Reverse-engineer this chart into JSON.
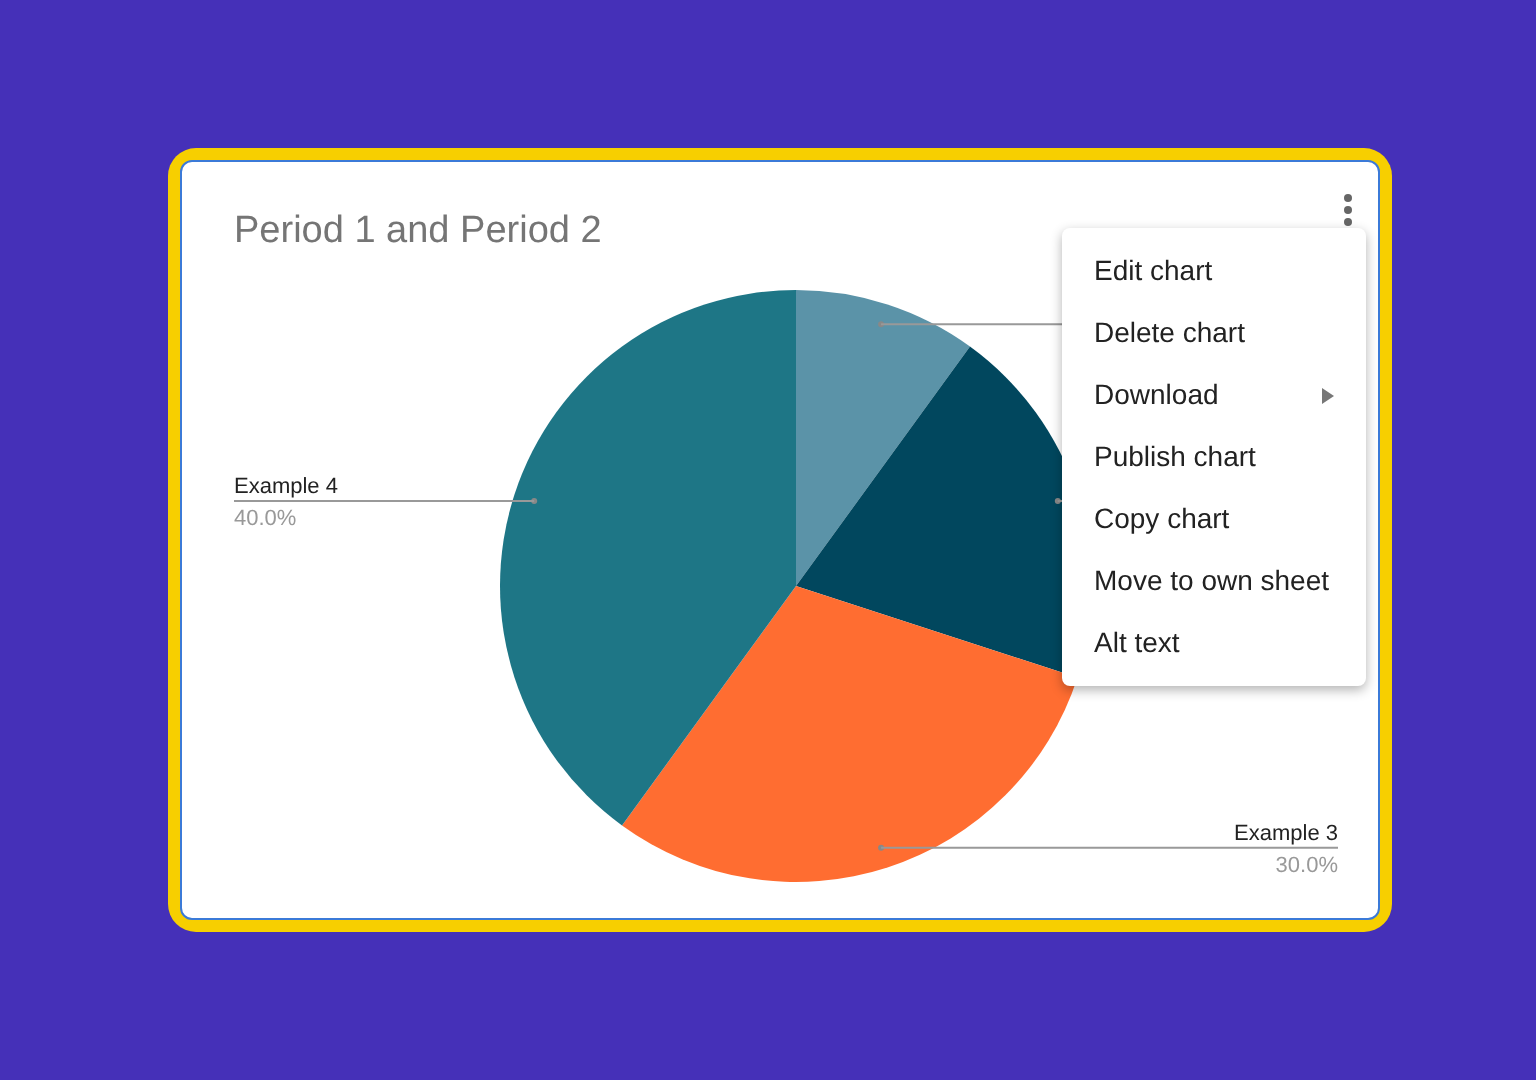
{
  "chart_data": {
    "type": "pie",
    "title": "Period 1 and Period 2",
    "categories": [
      null,
      null,
      "Example 3",
      "Example 4"
    ],
    "values": [
      10,
      20,
      30,
      40
    ],
    "colors": [
      "#5b93a8",
      "#01475e",
      "#ff6d31",
      "#1e7686"
    ],
    "value_labels": [
      null,
      null,
      "30.0%",
      "40.0%"
    ],
    "annotations": [
      "Edit chart",
      "Delete chart",
      "Download",
      "Publish chart",
      "Copy chart",
      "Move to own sheet",
      "Alt text"
    ]
  }
}
